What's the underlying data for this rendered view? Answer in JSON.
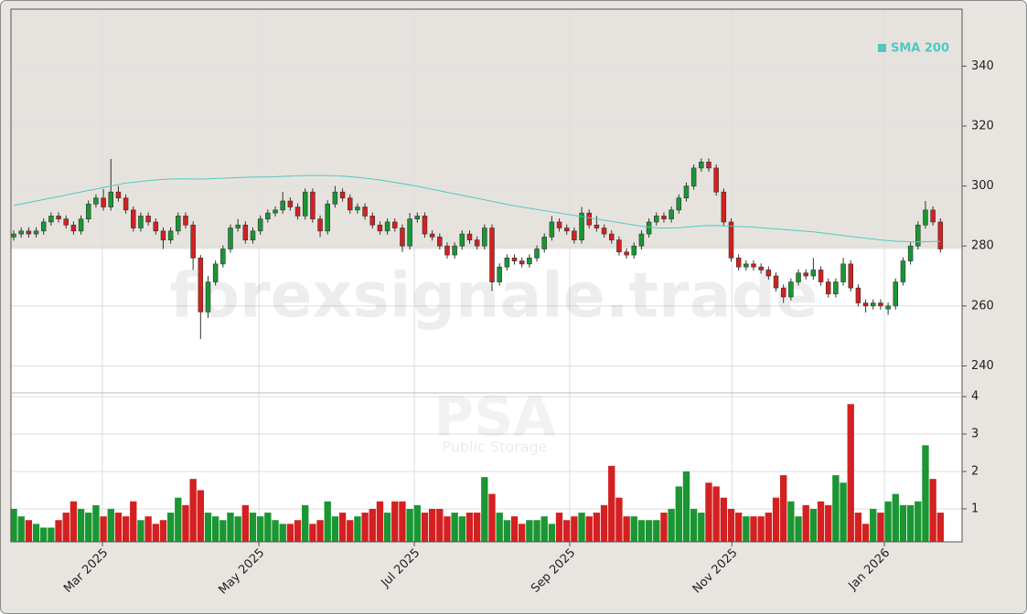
{
  "chart_data": {
    "type": "candlestick",
    "up_color": "#1a9632",
    "down_color": "#d42020",
    "ohlc": [
      [
        283,
        285.2,
        281.8,
        284
      ],
      [
        284,
        286.2,
        282.8,
        285
      ],
      [
        285,
        286.2,
        282.8,
        284
      ],
      [
        284,
        286.2,
        282.8,
        285
      ],
      [
        285,
        289.2,
        283.8,
        288
      ],
      [
        288,
        291.2,
        286.8,
        290
      ],
      [
        290,
        291.2,
        287.8,
        289
      ],
      [
        289,
        290.2,
        285.8,
        287
      ],
      [
        287,
        288.2,
        283.8,
        285
      ],
      [
        285,
        290.2,
        283.8,
        289
      ],
      [
        289,
        295.2,
        287.8,
        294
      ],
      [
        294,
        297.2,
        292.8,
        296
      ],
      [
        296,
        299,
        291.8,
        293
      ],
      [
        293,
        309,
        291.8,
        298
      ],
      [
        298,
        300,
        294.8,
        296
      ],
      [
        296,
        297.2,
        290.8,
        292
      ],
      [
        292,
        293.2,
        284.8,
        286
      ],
      [
        286,
        291.2,
        284.8,
        290
      ],
      [
        290,
        291.2,
        286.8,
        288
      ],
      [
        288,
        289.2,
        283.8,
        285
      ],
      [
        285,
        286.2,
        279,
        282
      ],
      [
        282,
        286.2,
        280.8,
        285
      ],
      [
        285,
        291.2,
        283.8,
        290
      ],
      [
        290,
        291.2,
        285.8,
        287
      ],
      [
        287,
        288.2,
        272,
        276
      ],
      [
        276,
        277,
        249,
        258
      ],
      [
        258,
        270,
        256,
        268
      ],
      [
        268,
        275.2,
        266.8,
        274
      ],
      [
        274,
        280.2,
        272.8,
        279
      ],
      [
        279,
        287.2,
        277.8,
        286
      ],
      [
        286,
        289,
        284.8,
        287
      ],
      [
        287,
        288.2,
        280.8,
        282
      ],
      [
        282,
        286.2,
        280.8,
        285
      ],
      [
        285,
        290.2,
        283.8,
        289
      ],
      [
        289,
        292.2,
        287.8,
        291
      ],
      [
        291,
        293.2,
        289.8,
        292
      ],
      [
        292,
        298,
        290.8,
        295
      ],
      [
        295,
        296.2,
        291.8,
        293
      ],
      [
        293,
        294.2,
        288.8,
        290
      ],
      [
        290,
        299.2,
        288.8,
        298
      ],
      [
        298,
        299.2,
        287.8,
        289
      ],
      [
        289,
        290.2,
        283,
        285
      ],
      [
        285,
        295.2,
        283.8,
        294
      ],
      [
        294,
        300,
        292.8,
        298
      ],
      [
        298,
        299.2,
        294.8,
        296
      ],
      [
        296,
        297.2,
        290.8,
        292
      ],
      [
        292,
        294.2,
        290.8,
        293
      ],
      [
        293,
        294.2,
        288.8,
        290
      ],
      [
        290,
        291.2,
        285.8,
        287
      ],
      [
        287,
        288.2,
        283.8,
        285
      ],
      [
        285,
        289.2,
        283.8,
        288
      ],
      [
        288,
        289.2,
        284.8,
        286
      ],
      [
        286,
        287.2,
        278,
        280
      ],
      [
        280,
        291,
        278.8,
        289
      ],
      [
        289,
        291.2,
        287.8,
        290
      ],
      [
        290,
        291.2,
        282.8,
        284
      ],
      [
        284,
        285.2,
        281.8,
        283
      ],
      [
        283,
        284.2,
        278.8,
        280
      ],
      [
        280,
        281.2,
        275.8,
        277
      ],
      [
        277,
        281.2,
        275.8,
        280
      ],
      [
        280,
        285.2,
        278.8,
        284
      ],
      [
        284,
        285.2,
        280.8,
        282
      ],
      [
        282,
        283.2,
        278.8,
        280
      ],
      [
        280,
        287.2,
        278.8,
        286
      ],
      [
        286,
        287.2,
        265,
        268
      ],
      [
        268,
        274.2,
        266.8,
        273
      ],
      [
        273,
        277.2,
        271.8,
        276
      ],
      [
        276,
        277.2,
        273.8,
        275
      ],
      [
        275,
        276.2,
        272.8,
        274
      ],
      [
        274,
        277.2,
        272.8,
        276
      ],
      [
        276,
        280.2,
        274.8,
        279
      ],
      [
        279,
        284.2,
        277.8,
        283
      ],
      [
        283,
        290,
        281.8,
        288
      ],
      [
        288,
        289.2,
        284.8,
        286
      ],
      [
        286,
        287.2,
        283.8,
        285
      ],
      [
        285,
        286.2,
        280.8,
        282
      ],
      [
        282,
        293,
        280.8,
        291
      ],
      [
        291,
        292.2,
        285.8,
        287
      ],
      [
        287,
        290,
        284.8,
        286
      ],
      [
        286,
        287.2,
        282.8,
        284
      ],
      [
        284,
        285.2,
        280.8,
        282
      ],
      [
        282,
        283.2,
        276.8,
        278
      ],
      [
        278,
        279.2,
        275.8,
        277
      ],
      [
        277,
        281.2,
        275.8,
        280
      ],
      [
        280,
        285.2,
        278.8,
        284
      ],
      [
        284,
        289.2,
        282.8,
        288
      ],
      [
        288,
        291.2,
        286.8,
        290
      ],
      [
        290,
        291.2,
        287.8,
        289
      ],
      [
        289,
        293.2,
        287.8,
        292
      ],
      [
        292,
        297.2,
        290.8,
        296
      ],
      [
        296,
        301.2,
        294.8,
        300
      ],
      [
        300,
        307.2,
        298.8,
        306
      ],
      [
        306,
        309.2,
        304.8,
        308
      ],
      [
        308,
        309.2,
        304.8,
        306
      ],
      [
        306,
        307.2,
        296.8,
        298
      ],
      [
        298,
        299.2,
        286.8,
        288
      ],
      [
        288,
        289.2,
        274.8,
        276
      ],
      [
        276,
        277.2,
        271.8,
        273
      ],
      [
        273,
        275.2,
        271.8,
        274
      ],
      [
        274,
        275.2,
        271.8,
        273
      ],
      [
        273,
        274.2,
        270.8,
        272
      ],
      [
        272,
        273.2,
        268.8,
        270
      ],
      [
        270,
        271.2,
        264.8,
        266
      ],
      [
        266,
        267.2,
        261,
        263
      ],
      [
        263,
        269.2,
        261.8,
        268
      ],
      [
        268,
        272.2,
        266.8,
        271
      ],
      [
        271,
        272.2,
        268.8,
        270
      ],
      [
        270,
        276,
        268.8,
        272
      ],
      [
        272,
        273.2,
        266.8,
        268
      ],
      [
        268,
        269.2,
        262.8,
        264
      ],
      [
        264,
        269.2,
        262.8,
        268
      ],
      [
        268,
        276,
        266.8,
        274
      ],
      [
        274,
        275.2,
        264.8,
        266
      ],
      [
        266,
        267.2,
        259.8,
        261
      ],
      [
        261,
        262.2,
        257.8,
        260
      ],
      [
        260,
        262.2,
        258.8,
        261
      ],
      [
        261,
        262.2,
        258.8,
        260
      ],
      [
        259,
        261.2,
        257,
        260
      ],
      [
        260,
        269.2,
        258.8,
        268
      ],
      [
        268,
        276.2,
        266.8,
        275
      ],
      [
        275,
        281.2,
        273.8,
        280
      ],
      [
        280,
        288.2,
        278.8,
        287
      ],
      [
        287,
        295,
        285.8,
        292
      ],
      [
        292,
        293.2,
        286.8,
        288
      ],
      [
        288,
        289.2,
        277.8,
        279
      ]
    ],
    "ylim": [
      231,
      359
    ],
    "yticks": [
      240,
      260,
      280,
      300,
      320,
      340
    ],
    "xlim": [
      -0.37,
      126.9
    ],
    "xticks": [
      {
        "value": 11.87,
        "label": "Mar 2025"
      },
      {
        "value": 32.8,
        "label": "May 2025"
      },
      {
        "value": 53.6,
        "label": "Jul 2025"
      },
      {
        "value": 74.4,
        "label": "Sep 2025"
      },
      {
        "value": 96.1,
        "label": "Nov 2025"
      },
      {
        "value": 116.5,
        "label": "Jan 2026"
      }
    ],
    "grid": true,
    "sma": {
      "name": "SMA 200",
      "color": "#4ec9c0",
      "values": [
        293.5,
        294,
        294.5,
        295,
        295.5,
        296,
        296.5,
        297,
        297.5,
        298,
        298.5,
        299,
        299.5,
        300,
        300.5,
        301,
        301.2,
        301.5,
        301.8,
        302,
        302.2,
        302.3,
        302.4,
        302.4,
        302.3,
        302.3,
        302.4,
        302.5,
        302.6,
        302.7,
        302.8,
        302.9,
        303,
        303,
        303,
        303.1,
        303.2,
        303.3,
        303.4,
        303.5,
        303.5,
        303.5,
        303.5,
        303.4,
        303.3,
        303.1,
        302.9,
        302.6,
        302.3,
        302,
        301.6,
        301.2,
        300.8,
        300.4,
        299.9,
        299.4,
        298.9,
        298.4,
        297.9,
        297.4,
        296.9,
        296.4,
        295.9,
        295.4,
        294.9,
        294.4,
        293.9,
        293.4,
        293,
        292.6,
        292.2,
        291.8,
        291.4,
        291,
        290.6,
        290.2,
        289.8,
        289.4,
        289,
        288.6,
        288.2,
        287.8,
        287.4,
        287,
        286.6,
        286.3,
        286.1,
        286,
        286,
        286.1,
        286.3,
        286.5,
        286.7,
        286.8,
        286.8,
        286.7,
        286.6,
        286.5,
        286.4,
        286.3,
        286.1,
        285.9,
        285.7,
        285.5,
        285.3,
        285.1,
        284.9,
        284.7,
        284.4,
        284.1,
        283.8,
        283.5,
        283.2,
        282.9,
        282.6,
        282.3,
        282,
        281.8,
        281.6,
        281.5,
        281.4,
        281.4,
        281.4,
        281.5,
        281.5
      ]
    },
    "legend": "upper right",
    "volume": {
      "ylim": [
        0.12,
        4.1
      ],
      "yticks": [
        1,
        2,
        3,
        4
      ],
      "values": [
        1.0,
        0.8,
        0.7,
        0.6,
        0.5,
        0.5,
        0.7,
        0.9,
        1.2,
        1.0,
        0.9,
        1.1,
        0.8,
        1.0,
        0.9,
        0.8,
        1.2,
        0.7,
        0.8,
        0.6,
        0.7,
        0.9,
        1.3,
        1.1,
        1.8,
        1.5,
        0.9,
        0.8,
        0.7,
        0.9,
        0.8,
        1.1,
        0.9,
        0.8,
        0.9,
        0.7,
        0.6,
        0.6,
        0.7,
        1.1,
        0.6,
        0.7,
        1.2,
        0.8,
        0.9,
        0.7,
        0.8,
        0.9,
        1.0,
        1.2,
        0.9,
        1.2,
        1.2,
        1.0,
        1.1,
        0.9,
        1.0,
        1.0,
        0.8,
        0.9,
        0.8,
        0.9,
        0.9,
        1.85,
        1.4,
        0.9,
        0.7,
        0.8,
        0.6,
        0.7,
        0.7,
        0.8,
        0.6,
        0.9,
        0.7,
        0.8,
        0.9,
        0.8,
        0.9,
        1.1,
        2.15,
        1.3,
        0.8,
        0.8,
        0.7,
        0.7,
        0.7,
        0.9,
        1.0,
        1.6,
        2.0,
        1.0,
        0.9,
        1.7,
        1.6,
        1.3,
        1.0,
        0.9,
        0.8,
        0.8,
        0.8,
        0.9,
        1.3,
        1.9,
        1.2,
        0.8,
        1.1,
        1.0,
        1.2,
        1.1,
        1.9,
        1.7,
        3.8,
        0.9,
        0.6,
        1.0,
        0.9,
        1.2,
        1.4,
        1.1,
        1.1,
        1.2,
        2.7,
        1.8,
        0.9
      ]
    },
    "watermark": [
      "forexsignale.trade",
      "PSA",
      "Public Storage"
    ]
  }
}
